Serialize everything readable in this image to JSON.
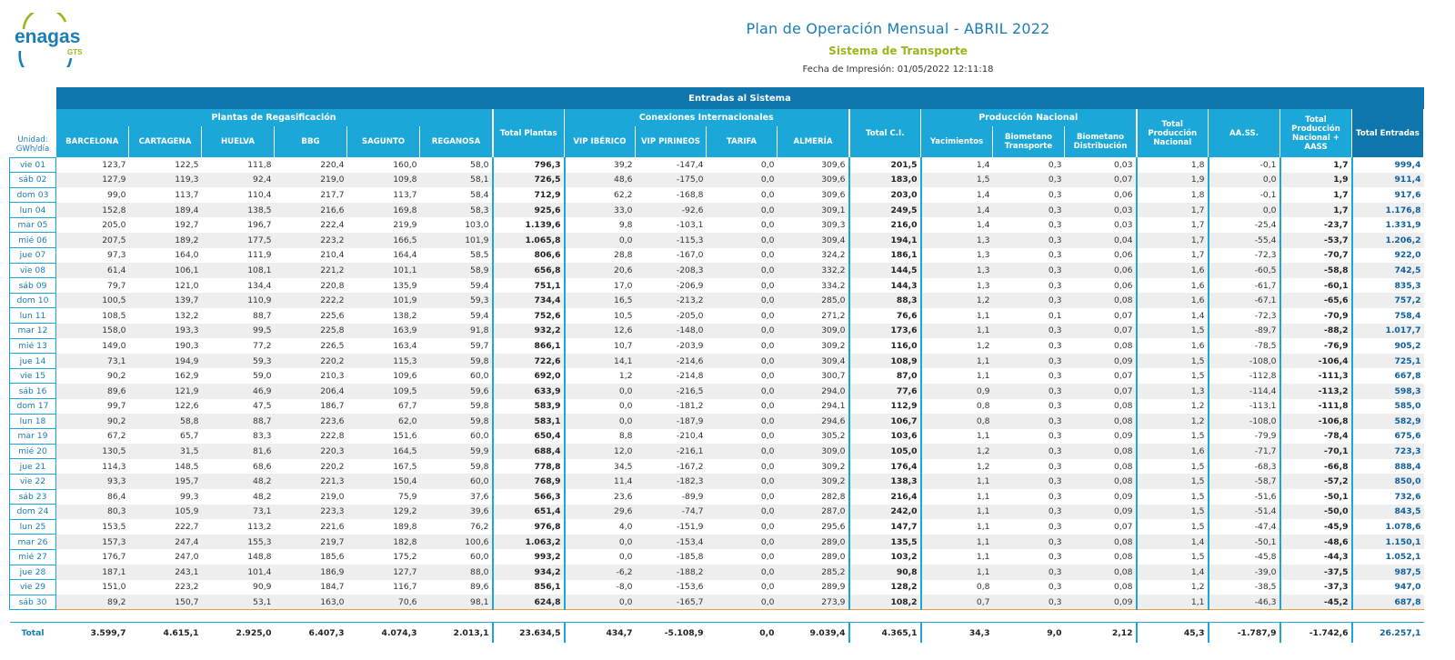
{
  "header": {
    "title": "Plan de Operación Mensual - ABRIL 2022",
    "subtitle": "Sistema de Transporte",
    "print_date": "Fecha de Impresión: 01/05/2022 12:11:18",
    "logo_text": "enagas",
    "logo_sub": "GTS"
  },
  "table": {
    "band": "Entradas al Sistema",
    "unit": "Unidad: GWh/día",
    "groups": {
      "plantas": "Plantas de Regasificación",
      "conexiones": "Conexiones Internacionales",
      "produccion": "Producción Nacional"
    },
    "columns": [
      "BARCELONA",
      "CARTAGENA",
      "HUELVA",
      "BBG",
      "SAGUNTO",
      "REGANOSA",
      "Total Plantas",
      "VIP IBÉRICO",
      "VIP PIRINEOS",
      "TARIFA",
      "ALMERÍA",
      "Total C.I.",
      "Yacimientos",
      "Biometano Transporte",
      "Biometano Distribución",
      "Total Producción Nacional",
      "AA.SS.",
      "Total Producción Nacional + AASS",
      "Total Entradas"
    ],
    "rows": [
      {
        "day": "vie 01",
        "v": [
          "123,7",
          "122,5",
          "111,8",
          "220,4",
          "160,0",
          "58,0",
          "796,3",
          "39,2",
          "-147,4",
          "0,0",
          "309,6",
          "201,5",
          "1,4",
          "0,3",
          "0,03",
          "1,8",
          "-0,1",
          "1,7",
          "999,4"
        ]
      },
      {
        "day": "sáb 02",
        "v": [
          "127,9",
          "119,3",
          "92,4",
          "219,0",
          "109,8",
          "58,1",
          "726,5",
          "48,6",
          "-175,0",
          "0,0",
          "309,6",
          "183,0",
          "1,5",
          "0,3",
          "0,07",
          "1,9",
          "0,0",
          "1,9",
          "911,4"
        ]
      },
      {
        "day": "dom 03",
        "v": [
          "99,0",
          "113,7",
          "110,4",
          "217,7",
          "113,7",
          "58,4",
          "712,9",
          "62,2",
          "-168,8",
          "0,0",
          "309,6",
          "203,0",
          "1,4",
          "0,3",
          "0,06",
          "1,8",
          "-0,1",
          "1,7",
          "917,6"
        ]
      },
      {
        "day": "lun 04",
        "v": [
          "152,8",
          "189,4",
          "138,5",
          "216,6",
          "169,8",
          "58,3",
          "925,6",
          "33,0",
          "-92,6",
          "0,0",
          "309,1",
          "249,5",
          "1,4",
          "0,3",
          "0,03",
          "1,7",
          "0,0",
          "1,7",
          "1.176,8"
        ]
      },
      {
        "day": "mar 05",
        "v": [
          "205,0",
          "192,7",
          "196,7",
          "222,4",
          "219,9",
          "103,0",
          "1.139,6",
          "9,8",
          "-103,1",
          "0,0",
          "309,3",
          "216,0",
          "1,4",
          "0,3",
          "0,03",
          "1,7",
          "-25,4",
          "-23,7",
          "1.331,9"
        ]
      },
      {
        "day": "mié 06",
        "v": [
          "207,5",
          "189,2",
          "177,5",
          "223,2",
          "166,5",
          "101,9",
          "1.065,8",
          "0,0",
          "-115,3",
          "0,0",
          "309,4",
          "194,1",
          "1,3",
          "0,3",
          "0,04",
          "1,7",
          "-55,4",
          "-53,7",
          "1.206,2"
        ]
      },
      {
        "day": "jue 07",
        "v": [
          "97,3",
          "164,0",
          "111,9",
          "210,4",
          "164,4",
          "58,5",
          "806,6",
          "28,8",
          "-167,0",
          "0,0",
          "324,2",
          "186,1",
          "1,3",
          "0,3",
          "0,06",
          "1,7",
          "-72,3",
          "-70,7",
          "922,0"
        ]
      },
      {
        "day": "vie 08",
        "v": [
          "61,4",
          "106,1",
          "108,1",
          "221,2",
          "101,1",
          "58,9",
          "656,8",
          "20,6",
          "-208,3",
          "0,0",
          "332,2",
          "144,5",
          "1,3",
          "0,3",
          "0,06",
          "1,6",
          "-60,5",
          "-58,8",
          "742,5"
        ]
      },
      {
        "day": "sáb 09",
        "v": [
          "79,7",
          "121,0",
          "134,4",
          "220,8",
          "135,9",
          "59,4",
          "751,1",
          "17,0",
          "-206,9",
          "0,0",
          "334,2",
          "144,3",
          "1,3",
          "0,3",
          "0,06",
          "1,6",
          "-61,7",
          "-60,1",
          "835,3"
        ]
      },
      {
        "day": "dom 10",
        "v": [
          "100,5",
          "139,7",
          "110,9",
          "222,2",
          "101,9",
          "59,3",
          "734,4",
          "16,5",
          "-213,2",
          "0,0",
          "285,0",
          "88,3",
          "1,2",
          "0,3",
          "0,08",
          "1,6",
          "-67,1",
          "-65,6",
          "757,2"
        ]
      },
      {
        "day": "lun 11",
        "v": [
          "108,5",
          "132,2",
          "88,7",
          "225,6",
          "138,2",
          "59,4",
          "752,6",
          "10,5",
          "-205,0",
          "0,0",
          "271,2",
          "76,6",
          "1,1",
          "0,1",
          "0,07",
          "1,4",
          "-72,3",
          "-70,9",
          "758,4"
        ]
      },
      {
        "day": "mar 12",
        "v": [
          "158,0",
          "193,3",
          "99,5",
          "225,8",
          "163,9",
          "91,8",
          "932,2",
          "12,6",
          "-148,0",
          "0,0",
          "309,0",
          "173,6",
          "1,1",
          "0,3",
          "0,07",
          "1,5",
          "-89,7",
          "-88,2",
          "1.017,7"
        ]
      },
      {
        "day": "mié 13",
        "v": [
          "149,0",
          "190,3",
          "77,2",
          "226,5",
          "163,4",
          "59,7",
          "866,1",
          "10,7",
          "-203,9",
          "0,0",
          "309,2",
          "116,0",
          "1,2",
          "0,3",
          "0,08",
          "1,6",
          "-78,5",
          "-76,9",
          "905,2"
        ]
      },
      {
        "day": "jue 14",
        "v": [
          "73,1",
          "194,9",
          "59,3",
          "220,2",
          "115,3",
          "59,8",
          "722,6",
          "14,1",
          "-214,6",
          "0,0",
          "309,4",
          "108,9",
          "1,1",
          "0,3",
          "0,09",
          "1,5",
          "-108,0",
          "-106,4",
          "725,1"
        ]
      },
      {
        "day": "vie 15",
        "v": [
          "90,2",
          "162,9",
          "59,0",
          "210,3",
          "109,6",
          "60,0",
          "692,0",
          "1,2",
          "-214,8",
          "0,0",
          "300,7",
          "87,0",
          "1,1",
          "0,3",
          "0,07",
          "1,5",
          "-112,8",
          "-111,3",
          "667,8"
        ]
      },
      {
        "day": "sáb 16",
        "v": [
          "89,6",
          "121,9",
          "46,9",
          "206,4",
          "109,5",
          "59,6",
          "633,9",
          "0,0",
          "-216,5",
          "0,0",
          "294,0",
          "77,6",
          "0,9",
          "0,3",
          "0,07",
          "1,3",
          "-114,4",
          "-113,2",
          "598,3"
        ]
      },
      {
        "day": "dom 17",
        "v": [
          "99,7",
          "122,6",
          "47,5",
          "186,7",
          "67,7",
          "59,8",
          "583,9",
          "0,0",
          "-181,2",
          "0,0",
          "294,1",
          "112,9",
          "0,8",
          "0,3",
          "0,08",
          "1,2",
          "-113,1",
          "-111,8",
          "585,0"
        ]
      },
      {
        "day": "lun 18",
        "v": [
          "90,2",
          "58,8",
          "88,7",
          "223,6",
          "62,0",
          "59,8",
          "583,1",
          "0,0",
          "-187,9",
          "0,0",
          "294,6",
          "106,7",
          "0,8",
          "0,3",
          "0,08",
          "1,2",
          "-108,0",
          "-106,8",
          "582,9"
        ]
      },
      {
        "day": "mar 19",
        "v": [
          "67,2",
          "65,7",
          "83,3",
          "222,8",
          "151,6",
          "60,0",
          "650,4",
          "8,8",
          "-210,4",
          "0,0",
          "305,2",
          "103,6",
          "1,1",
          "0,3",
          "0,09",
          "1,5",
          "-79,9",
          "-78,4",
          "675,6"
        ]
      },
      {
        "day": "mié 20",
        "v": [
          "130,5",
          "31,5",
          "81,6",
          "220,3",
          "164,5",
          "59,9",
          "688,4",
          "12,0",
          "-216,1",
          "0,0",
          "309,0",
          "105,0",
          "1,2",
          "0,3",
          "0,08",
          "1,6",
          "-71,7",
          "-70,1",
          "723,3"
        ]
      },
      {
        "day": "jue 21",
        "v": [
          "114,3",
          "148,5",
          "68,6",
          "220,2",
          "167,5",
          "59,8",
          "778,8",
          "34,5",
          "-167,2",
          "0,0",
          "309,2",
          "176,4",
          "1,2",
          "0,3",
          "0,08",
          "1,5",
          "-68,3",
          "-66,8",
          "888,4"
        ]
      },
      {
        "day": "vie 22",
        "v": [
          "93,3",
          "195,7",
          "48,2",
          "221,3",
          "150,4",
          "60,0",
          "768,9",
          "11,4",
          "-182,3",
          "0,0",
          "309,2",
          "138,3",
          "1,1",
          "0,3",
          "0,08",
          "1,5",
          "-58,7",
          "-57,2",
          "850,0"
        ]
      },
      {
        "day": "sáb 23",
        "v": [
          "86,4",
          "99,3",
          "48,2",
          "219,0",
          "75,9",
          "37,6",
          "566,3",
          "23,6",
          "-89,9",
          "0,0",
          "282,8",
          "216,4",
          "1,1",
          "0,3",
          "0,09",
          "1,5",
          "-51,6",
          "-50,1",
          "732,6"
        ]
      },
      {
        "day": "dom 24",
        "v": [
          "80,3",
          "105,9",
          "73,1",
          "223,3",
          "129,2",
          "39,6",
          "651,4",
          "29,6",
          "-74,7",
          "0,0",
          "287,0",
          "242,0",
          "1,1",
          "0,3",
          "0,09",
          "1,5",
          "-51,4",
          "-50,0",
          "843,5"
        ]
      },
      {
        "day": "lun 25",
        "v": [
          "153,5",
          "222,7",
          "113,2",
          "221,6",
          "189,8",
          "76,2",
          "976,8",
          "4,0",
          "-151,9",
          "0,0",
          "295,6",
          "147,7",
          "1,1",
          "0,3",
          "0,07",
          "1,5",
          "-47,4",
          "-45,9",
          "1.078,6"
        ]
      },
      {
        "day": "mar 26",
        "v": [
          "157,3",
          "247,4",
          "155,3",
          "219,7",
          "182,8",
          "100,6",
          "1.063,2",
          "0,0",
          "-153,4",
          "0,0",
          "289,0",
          "135,5",
          "1,1",
          "0,3",
          "0,08",
          "1,4",
          "-50,1",
          "-48,6",
          "1.150,1"
        ]
      },
      {
        "day": "mié 27",
        "v": [
          "176,7",
          "247,0",
          "148,8",
          "185,6",
          "175,2",
          "60,0",
          "993,2",
          "0,0",
          "-185,8",
          "0,0",
          "289,0",
          "103,2",
          "1,1",
          "0,3",
          "0,08",
          "1,5",
          "-45,8",
          "-44,3",
          "1.052,1"
        ]
      },
      {
        "day": "jue 28",
        "v": [
          "187,1",
          "243,1",
          "101,4",
          "186,9",
          "127,7",
          "88,0",
          "934,2",
          "-6,2",
          "-188,2",
          "0,0",
          "285,2",
          "90,8",
          "1,1",
          "0,3",
          "0,08",
          "1,4",
          "-39,0",
          "-37,5",
          "987,5"
        ]
      },
      {
        "day": "vie 29",
        "v": [
          "151,0",
          "223,2",
          "90,9",
          "184,7",
          "116,7",
          "89,6",
          "856,1",
          "-8,0",
          "-153,6",
          "0,0",
          "289,9",
          "128,2",
          "0,8",
          "0,3",
          "0,08",
          "1,2",
          "-38,5",
          "-37,3",
          "947,0"
        ]
      },
      {
        "day": "sáb 30",
        "v": [
          "89,2",
          "150,7",
          "53,1",
          "163,0",
          "70,6",
          "98,1",
          "624,8",
          "0,0",
          "-165,7",
          "0,0",
          "273,9",
          "108,2",
          "0,7",
          "0,3",
          "0,09",
          "1,1",
          "-46,3",
          "-45,2",
          "687,8"
        ]
      }
    ],
    "total": {
      "label": "Total",
      "v": [
        "3.599,7",
        "4.615,1",
        "2.925,0",
        "6.407,3",
        "4.074,3",
        "2.013,1",
        "23.634,5",
        "434,7",
        "-5.108,9",
        "0,0",
        "9.039,4",
        "4.365,1",
        "34,3",
        "9,0",
        "2,12",
        "45,3",
        "-1.787,9",
        "-1.742,6",
        "26.257,1"
      ]
    }
  }
}
